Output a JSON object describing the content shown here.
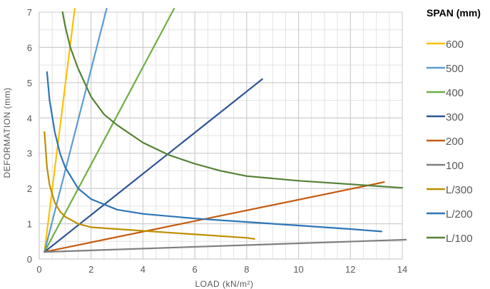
{
  "chart_data": {
    "type": "line",
    "title": "",
    "xlabel": "LOAD (kN/m²)",
    "ylabel": "DEFORMATION (mm)",
    "xlim": [
      0,
      14
    ],
    "ylim": [
      0,
      7
    ],
    "x_ticks": [
      0,
      2,
      4,
      6,
      8,
      10,
      12,
      14
    ],
    "y_ticks": [
      0,
      1,
      2,
      3,
      4,
      5,
      6,
      7
    ],
    "x_minor_step": 0.5,
    "y_minor_step": 0.5,
    "grid": true,
    "legend_title": "SPAN (mm)",
    "legend_position": "right",
    "series": [
      {
        "name": "600",
        "color": "#FFC000",
        "x": [
          0.2,
          1.37
        ],
        "y": [
          0.2,
          7.1
        ]
      },
      {
        "name": "500",
        "color": "#5B9BD5",
        "x": [
          0.2,
          2.6
        ],
        "y": [
          0.2,
          7.1
        ]
      },
      {
        "name": "400",
        "color": "#70AD47",
        "x": [
          0.2,
          5.2
        ],
        "y": [
          0.2,
          7.1
        ]
      },
      {
        "name": "300",
        "color": "#2F5597",
        "x": [
          0.2,
          8.6
        ],
        "y": [
          0.2,
          5.1
        ]
      },
      {
        "name": "200",
        "color": "#C55A11",
        "x": [
          0.2,
          13.3
        ],
        "y": [
          0.2,
          2.18
        ]
      },
      {
        "name": "100",
        "color": "#7F7F7F",
        "x": [
          0.2,
          14.2
        ],
        "y": [
          0.2,
          0.55
        ]
      },
      {
        "name": "L/300",
        "color": "#BF8F00",
        "x": [
          0.2,
          0.3,
          0.4,
          0.6,
          0.8,
          1.0,
          1.5,
          2.0,
          3.0,
          4.0,
          6.0,
          8.0,
          8.3
        ],
        "y": [
          3.6,
          2.6,
          2.1,
          1.6,
          1.35,
          1.2,
          1.0,
          0.9,
          0.85,
          0.8,
          0.7,
          0.6,
          0.57
        ]
      },
      {
        "name": "L/200",
        "color": "#2E75B6",
        "x": [
          0.3,
          0.4,
          0.6,
          0.8,
          1.0,
          1.5,
          2.0,
          3.0,
          4.0,
          6.0,
          8.0,
          10.0,
          12.0,
          13.2
        ],
        "y": [
          5.3,
          4.5,
          3.6,
          3.0,
          2.6,
          2.0,
          1.7,
          1.4,
          1.28,
          1.15,
          1.05,
          0.95,
          0.85,
          0.78
        ]
      },
      {
        "name": "L/100",
        "color": "#548235",
        "x": [
          0.9,
          1.0,
          1.2,
          1.5,
          2.0,
          2.5,
          3.0,
          4.0,
          5.0,
          6.0,
          7.0,
          8.0,
          10.0,
          12.0,
          14.0
        ],
        "y": [
          7.0,
          6.6,
          6.0,
          5.4,
          4.6,
          4.1,
          3.8,
          3.3,
          2.95,
          2.7,
          2.5,
          2.35,
          2.22,
          2.12,
          2.02
        ]
      }
    ]
  }
}
